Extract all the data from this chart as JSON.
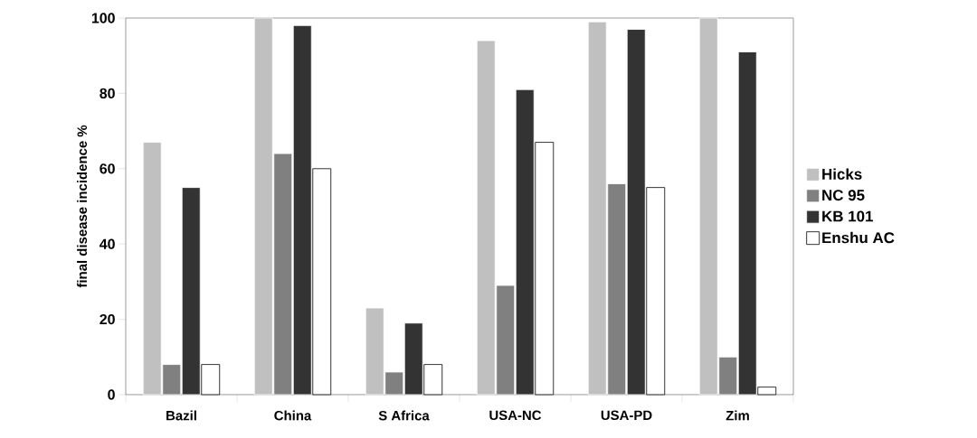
{
  "chart_data": {
    "type": "bar",
    "ylabel": "final disease incidence %",
    "categories": [
      "Bazil",
      "China",
      "S Africa",
      "USA-NC",
      "USA-PD",
      "Zim"
    ],
    "series": [
      {
        "name": "Hicks",
        "color": "#c0c0c0",
        "values": [
          67,
          100,
          23,
          94,
          99,
          100
        ]
      },
      {
        "name": "NC 95",
        "color": "#808080",
        "values": [
          8,
          64,
          6,
          29,
          56,
          10
        ]
      },
      {
        "name": "KB 101",
        "color": "#333333",
        "values": [
          55,
          98,
          19,
          81,
          97,
          91
        ]
      },
      {
        "name": "Enshu AC",
        "color": "#ffffff",
        "values": [
          8,
          60,
          8,
          67,
          55,
          2
        ]
      }
    ],
    "ylim": [
      0,
      100
    ],
    "yticks": [
      0,
      20,
      40,
      60,
      80,
      100
    ],
    "grid": false,
    "legend": "right"
  }
}
